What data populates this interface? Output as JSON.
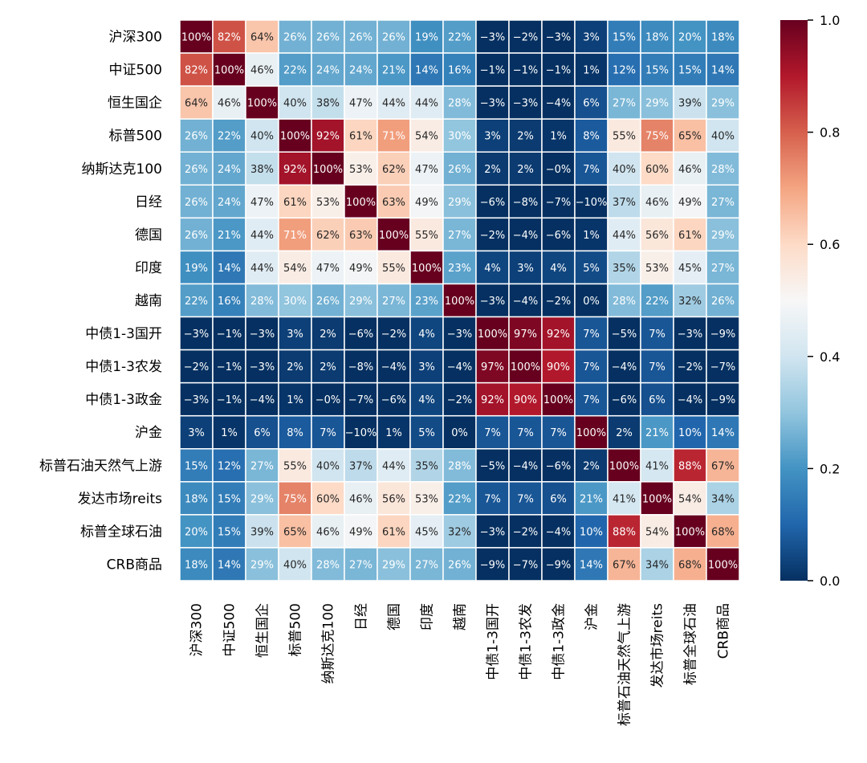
{
  "chart_data": {
    "type": "heatmap",
    "title": "",
    "value_format": "percent",
    "labels": [
      "沪深300",
      "中证500",
      "恒生国企",
      "标普500",
      "纳斯达克100",
      "日经",
      "德国",
      "印度",
      "越南",
      "中债1-3国开",
      "中债1-3农发",
      "中债1-3政金",
      "沪金",
      "标普石油天然气上游",
      "发达市场reits",
      "标普全球石油",
      "CRB商品"
    ],
    "matrix": [
      [
        100,
        82,
        64,
        26,
        26,
        26,
        26,
        19,
        22,
        -3,
        -2,
        -3,
        3,
        15,
        18,
        20,
        18
      ],
      [
        82,
        100,
        46,
        22,
        24,
        24,
        21,
        14,
        16,
        -1,
        -1,
        -1,
        1,
        12,
        15,
        15,
        14
      ],
      [
        64,
        46,
        100,
        40,
        38,
        47,
        44,
        44,
        28,
        -3,
        -3,
        -4,
        6,
        27,
        29,
        39,
        29
      ],
      [
        26,
        22,
        40,
        100,
        92,
        61,
        71,
        54,
        30,
        3,
        2,
        1,
        8,
        55,
        75,
        65,
        40
      ],
      [
        26,
        24,
        38,
        92,
        100,
        53,
        62,
        47,
        26,
        2,
        2,
        0,
        7,
        40,
        60,
        46,
        28
      ],
      [
        26,
        24,
        47,
        61,
        53,
        100,
        63,
        49,
        29,
        -6,
        -8,
        -7,
        -10,
        37,
        46,
        49,
        27
      ],
      [
        26,
        21,
        44,
        71,
        62,
        63,
        100,
        55,
        27,
        -2,
        -4,
        -6,
        1,
        44,
        56,
        61,
        29
      ],
      [
        19,
        14,
        44,
        54,
        47,
        49,
        55,
        100,
        23,
        4,
        3,
        4,
        5,
        35,
        53,
        45,
        27
      ],
      [
        22,
        16,
        28,
        30,
        26,
        29,
        27,
        23,
        100,
        -3,
        -4,
        -2,
        0,
        28,
        22,
        32,
        26
      ],
      [
        -3,
        -1,
        -3,
        3,
        2,
        -6,
        -2,
        4,
        -3,
        100,
        97,
        92,
        7,
        -5,
        7,
        -3,
        -9
      ],
      [
        -2,
        -1,
        -3,
        2,
        2,
        -8,
        -4,
        3,
        -4,
        97,
        100,
        90,
        7,
        -4,
        7,
        -2,
        -7
      ],
      [
        -3,
        -1,
        -4,
        1,
        0,
        -7,
        -6,
        4,
        -2,
        92,
        90,
        100,
        7,
        -6,
        6,
        -4,
        -9
      ],
      [
        3,
        1,
        6,
        8,
        7,
        -10,
        1,
        5,
        0,
        7,
        7,
        7,
        100,
        2,
        21,
        10,
        14
      ],
      [
        15,
        12,
        27,
        55,
        40,
        37,
        44,
        35,
        28,
        -5,
        -4,
        -6,
        2,
        100,
        41,
        88,
        67
      ],
      [
        18,
        15,
        29,
        75,
        60,
        46,
        56,
        53,
        22,
        7,
        7,
        6,
        21,
        41,
        100,
        54,
        34
      ],
      [
        20,
        15,
        39,
        65,
        46,
        49,
        61,
        45,
        32,
        -3,
        -2,
        -4,
        10,
        88,
        54,
        100,
        68
      ],
      [
        18,
        14,
        29,
        40,
        28,
        27,
        29,
        27,
        26,
        -9,
        -7,
        -9,
        14,
        67,
        34,
        68,
        100
      ]
    ],
    "colorbar": {
      "min": 0.0,
      "max": 1.0,
      "ticks": [
        "0.0",
        "0.2",
        "0.4",
        "0.6",
        "0.8",
        "1.0"
      ],
      "colormap": "RdBu_r"
    }
  }
}
